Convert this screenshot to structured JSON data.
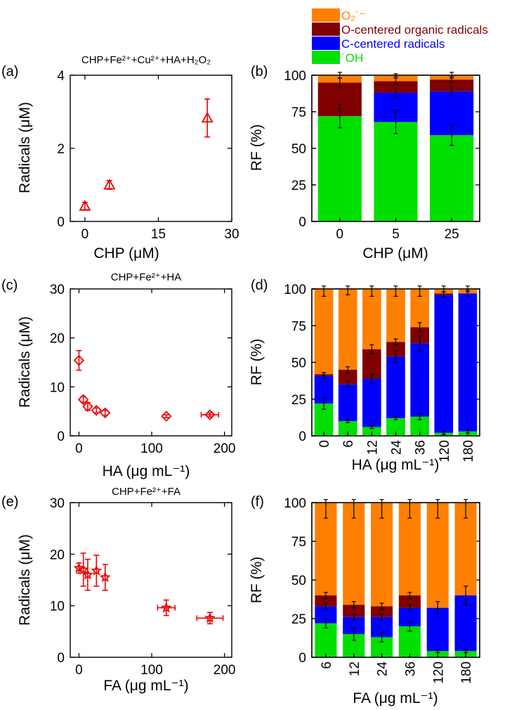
{
  "legend": {
    "items": [
      {
        "label": "O₂˙⁻",
        "key": "o2",
        "color": "#FF8000"
      },
      {
        "label": "O-centered organic radicals",
        "key": "oc",
        "color": "#800000"
      },
      {
        "label": "C-centered radicals",
        "key": "cc",
        "color": "#0000FF"
      },
      {
        "label": "˙OH",
        "key": "oh",
        "color": "#00E000"
      }
    ]
  },
  "chart_data": [
    {
      "panel": "(a)",
      "type": "scatter",
      "title": "CHP+Fe²⁺+Cu²⁺+HA+H₂O₂",
      "xlabel": "CHP (μM)",
      "ylabel": "Radicals (μM)",
      "xlim": [
        -3,
        30
      ],
      "ylim": [
        0,
        4
      ],
      "xticks": [
        0,
        15,
        30
      ],
      "yticks": [
        0,
        2,
        4
      ],
      "marker": "triangle",
      "color": "#EE0000",
      "points": [
        {
          "x": 0,
          "y": 0.42,
          "yerr": 0.1,
          "xerr": 0
        },
        {
          "x": 5,
          "y": 1.0,
          "yerr": 0.12,
          "xerr": 0
        },
        {
          "x": 25,
          "y": 2.83,
          "yerr": 0.52,
          "xerr": 0
        }
      ]
    },
    {
      "panel": "(b)",
      "type": "bar",
      "stacked": true,
      "xlabel": "CHP (μM)",
      "ylabel": "RF (%)",
      "ylim": [
        0,
        100
      ],
      "yticks": [
        0,
        25,
        50,
        75,
        100
      ],
      "categories": [
        "0",
        "5",
        "25"
      ],
      "series": [
        {
          "key": "oh",
          "values": [
            72,
            68,
            59
          ],
          "errors": [
            8,
            8,
            7
          ]
        },
        {
          "key": "cc",
          "values": [
            0,
            20,
            30
          ],
          "errors": [
            0,
            3,
            3
          ]
        },
        {
          "key": "oc",
          "values": [
            23,
            8,
            8
          ],
          "errors": [
            3,
            2,
            2
          ]
        },
        {
          "key": "o2",
          "values": [
            5,
            4,
            3
          ],
          "errors": [
            2,
            1,
            2
          ]
        }
      ]
    },
    {
      "panel": "(c)",
      "type": "scatter",
      "title": "CHP+Fe²⁺+HA",
      "xlabel": "HA (μg mL⁻¹)",
      "ylabel": "Radicals (μM)",
      "xlim": [
        -12,
        210
      ],
      "ylim": [
        0,
        30
      ],
      "xticks": [
        0,
        100,
        200
      ],
      "yticks": [
        0,
        10,
        20,
        30
      ],
      "marker": "diamond",
      "color": "#EE0000",
      "points": [
        {
          "x": 0,
          "y": 15.4,
          "yerr": 2.0,
          "xerr": 0
        },
        {
          "x": 6,
          "y": 7.4,
          "yerr": 0.6,
          "xerr": 0
        },
        {
          "x": 12,
          "y": 6.0,
          "yerr": 0.8,
          "xerr": 0
        },
        {
          "x": 24,
          "y": 5.2,
          "yerr": 0.5,
          "xerr": 0
        },
        {
          "x": 36,
          "y": 4.7,
          "yerr": 0.5,
          "xerr": 0
        },
        {
          "x": 120,
          "y": 4.0,
          "yerr": 0.3,
          "xerr": 0
        },
        {
          "x": 180,
          "y": 4.3,
          "yerr": 0.4,
          "xerr": 12
        }
      ]
    },
    {
      "panel": "(d)",
      "type": "bar",
      "stacked": true,
      "xlabel": "HA (μg mL⁻¹)",
      "ylabel": "RF (%)",
      "ylim": [
        0,
        100
      ],
      "yticks": [
        0,
        25,
        50,
        75,
        100
      ],
      "categories": [
        "0",
        "6",
        "12",
        "24",
        "36",
        "120",
        "180"
      ],
      "series": [
        {
          "key": "oh",
          "values": [
            22,
            10,
            6,
            12,
            13,
            2,
            3
          ],
          "errors": [
            4,
            1,
            1,
            1,
            2,
            1,
            1
          ]
        },
        {
          "key": "cc",
          "values": [
            19,
            25,
            33,
            42,
            50,
            94,
            94
          ],
          "errors": [
            2,
            2,
            3,
            4,
            5,
            2,
            2
          ]
        },
        {
          "key": "oc",
          "values": [
            1,
            10,
            20,
            10,
            11,
            1,
            0
          ],
          "errors": [
            1,
            2,
            3,
            2,
            3,
            0,
            0
          ]
        },
        {
          "key": "o2",
          "values": [
            58,
            55,
            41,
            36,
            26,
            3,
            3
          ],
          "errors": [
            5,
            4,
            5,
            5,
            5,
            2,
            2
          ]
        }
      ]
    },
    {
      "panel": "(e)",
      "type": "scatter",
      "title": "CHP+Fe²⁺+FA",
      "xlabel": "FA (μg mL⁻¹)",
      "ylabel": "Radicals (μM)",
      "xlim": [
        -12,
        210
      ],
      "ylim": [
        0,
        30
      ],
      "xticks": [
        0,
        100,
        200
      ],
      "yticks": [
        0,
        10,
        20,
        30
      ],
      "marker": "star",
      "color": "#EE0000",
      "points": [
        {
          "x": 0,
          "y": 17.3,
          "yerr": 1.0,
          "xerr": 0
        },
        {
          "x": 6,
          "y": 17.0,
          "yerr": 3.2,
          "xerr": 0
        },
        {
          "x": 12,
          "y": 16.0,
          "yerr": 3.0,
          "xerr": 0
        },
        {
          "x": 24,
          "y": 16.8,
          "yerr": 3.0,
          "xerr": 0
        },
        {
          "x": 36,
          "y": 15.5,
          "yerr": 2.5,
          "xerr": 0
        },
        {
          "x": 120,
          "y": 9.6,
          "yerr": 1.5,
          "xerr": 12
        },
        {
          "x": 180,
          "y": 7.6,
          "yerr": 1.1,
          "xerr": 18
        }
      ]
    },
    {
      "panel": "(f)",
      "type": "bar",
      "stacked": true,
      "xlabel": "FA (μg mL⁻¹)",
      "ylabel": "RF (%)",
      "ylim": [
        0,
        100
      ],
      "yticks": [
        0,
        25,
        50,
        75,
        100
      ],
      "categories": [
        "6",
        "12",
        "24",
        "36",
        "120",
        "180"
      ],
      "series": [
        {
          "key": "oh",
          "values": [
            22,
            15,
            13,
            20,
            4,
            4
          ],
          "errors": [
            3,
            4,
            3,
            3,
            1,
            1
          ]
        },
        {
          "key": "cc",
          "values": [
            11,
            11,
            13,
            12,
            28,
            36
          ],
          "errors": [
            2,
            2,
            2,
            2,
            4,
            6
          ]
        },
        {
          "key": "oc",
          "values": [
            7,
            8,
            7,
            8,
            0,
            0
          ],
          "errors": [
            2,
            2,
            2,
            2,
            0,
            0
          ]
        },
        {
          "key": "o2",
          "values": [
            60,
            66,
            67,
            60,
            68,
            60
          ],
          "errors": [
            10,
            10,
            10,
            10,
            10,
            10
          ]
        }
      ]
    }
  ]
}
